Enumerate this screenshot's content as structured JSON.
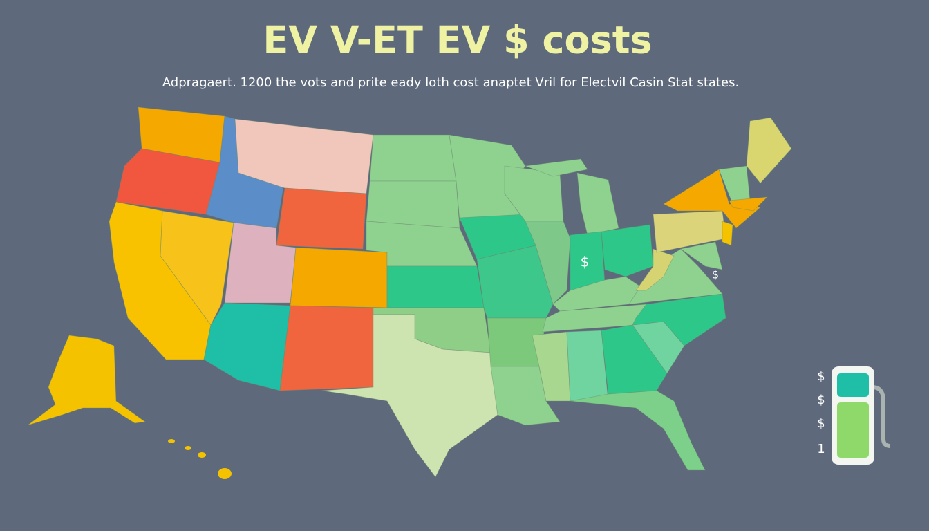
{
  "title": "EV V-ET EV $ costs",
  "subtitle": "Adpragaert. 1200 the vots and prite eady loth cost anaptet Vril for Electvil Casin Stat states.",
  "map_labels": [
    "$",
    "$"
  ],
  "legend": {
    "labels": [
      "$",
      "$",
      "$",
      "1"
    ]
  }
}
